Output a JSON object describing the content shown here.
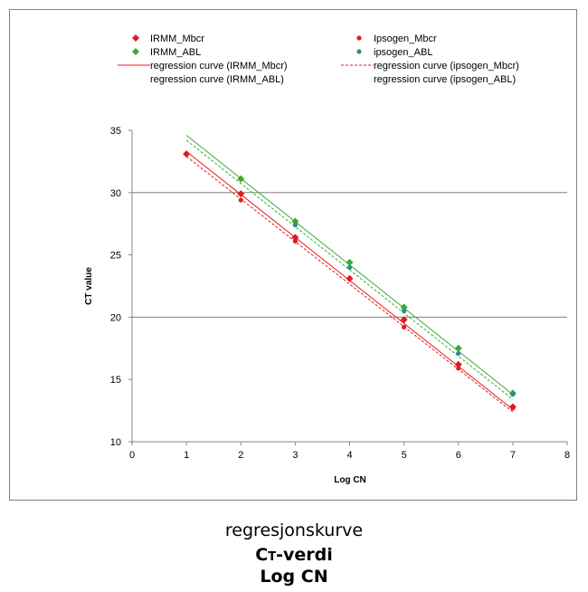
{
  "chart_data": {
    "type": "scatter",
    "xlabel": "Log CN",
    "ylabel": "CT value",
    "xlim": [
      0,
      8
    ],
    "ylim": [
      10,
      35
    ],
    "x_ticks": [
      0,
      1,
      2,
      3,
      4,
      5,
      6,
      7,
      8
    ],
    "y_ticks": [
      10,
      15,
      20,
      25,
      30,
      35
    ],
    "grid": "horizontal at 20 and 30",
    "legend_position": "top",
    "series": [
      {
        "name": "IRMM_Mbcr",
        "color": "#e41a1c",
        "marker": "diamond",
        "points": [
          [
            1,
            33.1
          ],
          [
            2,
            29.9
          ],
          [
            3,
            26.4
          ],
          [
            4,
            23.1
          ],
          [
            5,
            19.8
          ],
          [
            6,
            16.2
          ],
          [
            7,
            12.8
          ]
        ]
      },
      {
        "name": "Ipsogen_Mbcr",
        "color": "#e41a1c",
        "marker": "dot",
        "points": [
          [
            2,
            29.4
          ],
          [
            3,
            26.1
          ],
          [
            5,
            19.2
          ],
          [
            6,
            15.9
          ],
          [
            7,
            12.7
          ]
        ]
      },
      {
        "name": "IRMM_ABL",
        "color": "#3aaa35",
        "marker": "diamond",
        "points": [
          [
            2,
            31.1
          ],
          [
            3,
            27.7
          ],
          [
            4,
            24.4
          ],
          [
            5,
            20.8
          ],
          [
            6,
            17.5
          ],
          [
            7,
            13.9
          ]
        ]
      },
      {
        "name": "ipsogen_ABL",
        "color": "#2e8b8b",
        "marker": "dot",
        "points": [
          [
            3,
            27.4
          ],
          [
            4,
            24.0
          ],
          [
            5,
            20.5
          ],
          [
            6,
            17.1
          ],
          [
            7,
            13.8
          ]
        ]
      }
    ],
    "regression": [
      {
        "name": "regression curve (IRMM_Mbcr)",
        "color": "#e41a1c",
        "style": "solid",
        "from": [
          1,
          33.3
        ],
        "to": [
          7,
          12.6
        ]
      },
      {
        "name": "regression curve (ipsogen_Mbcr)",
        "color": "#e41a1c",
        "style": "dashed",
        "from": [
          1,
          32.9
        ],
        "to": [
          7,
          12.4
        ]
      },
      {
        "name": "regression curve (IRMM_ABL)",
        "color": "#3aaa35",
        "style": "solid",
        "from": [
          1,
          34.6
        ],
        "to": [
          7,
          13.8
        ]
      },
      {
        "name": "regression curve (ipsogen_ABL)",
        "color": "#3aaa35",
        "style": "dashed",
        "from": [
          1,
          34.2
        ],
        "to": [
          7,
          13.4
        ]
      }
    ],
    "legend": [
      {
        "label": "IRMM_Mbcr",
        "kind": "diamond",
        "color": "#e41a1c"
      },
      {
        "label": "Ipsogen_Mbcr",
        "kind": "dot",
        "color": "#e41a1c"
      },
      {
        "label": "IRMM_ABL",
        "kind": "diamond",
        "color": "#3aaa35"
      },
      {
        "label": "ipsogen_ABL",
        "kind": "dot",
        "color": "#2e8b8b"
      },
      {
        "label": "regression curve (IRMM_Mbcr)",
        "kind": "solid",
        "color": "#e41a1c"
      },
      {
        "label": "regression curve (ipsogen_Mbcr)",
        "kind": "dashed",
        "color": "#e41a1c"
      },
      {
        "label": "regression curve (IRMM_ABL)",
        "kind": "none",
        "color": "#3aaa35"
      },
      {
        "label": "regression curve (ipsogen_ABL)",
        "kind": "none",
        "color": "#3aaa35"
      }
    ]
  },
  "caption": {
    "line1": "regresjonskurve",
    "line2_main": "C",
    "line2_sub": "T",
    "line2_rest": "-verdi",
    "line3": "Log CN"
  }
}
